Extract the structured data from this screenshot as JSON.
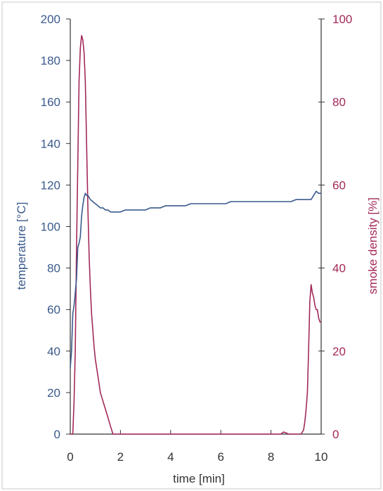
{
  "chart_data": {
    "type": "line",
    "title": "",
    "xlabel": "time [min]",
    "ylabel_left": "temperature [°C]",
    "ylabel_right": "smoke density [%]",
    "xlim": [
      0,
      10
    ],
    "ylim_left": [
      0,
      200
    ],
    "ylim_right": [
      0,
      100
    ],
    "x_ticks": [
      "0",
      "2",
      "4",
      "6",
      "8",
      "10"
    ],
    "y_left_ticks": [
      "0",
      "20",
      "40",
      "60",
      "80",
      "100",
      "120",
      "140",
      "160",
      "180",
      "200"
    ],
    "y_right_ticks": [
      "0",
      "20",
      "40",
      "60",
      "80",
      "100"
    ],
    "grid": false,
    "legend": "none",
    "colors": {
      "temperature": "#3a5a8c",
      "smoke": "#a3295a",
      "axes": "#333333",
      "frame": "#c8c8c8"
    },
    "series": [
      {
        "axis": "left",
        "x": [
          0.0,
          0.05,
          0.1,
          0.15,
          0.2,
          0.25,
          0.3,
          0.35,
          0.4,
          0.45,
          0.5,
          0.55,
          0.6,
          0.65,
          0.7,
          0.75,
          0.8,
          0.9,
          1.0,
          1.1,
          1.2,
          1.3,
          1.4,
          1.5,
          1.6,
          1.7,
          1.8,
          2.0,
          2.2,
          2.4,
          2.6,
          2.8,
          3.0,
          3.2,
          3.4,
          3.6,
          3.8,
          4.0,
          4.2,
          4.4,
          4.6,
          4.8,
          5.0,
          5.2,
          5.4,
          5.6,
          5.8,
          6.0,
          6.2,
          6.4,
          6.6,
          6.8,
          7.0,
          7.2,
          7.4,
          7.6,
          7.8,
          8.0,
          8.2,
          8.4,
          8.6,
          8.8,
          9.0,
          9.2,
          9.4,
          9.5,
          9.6,
          9.7,
          9.8,
          9.9,
          10.0
        ],
        "values": [
          32,
          40,
          58,
          62,
          68,
          75,
          90,
          92,
          95,
          105,
          110,
          114,
          116,
          115,
          115,
          114,
          113,
          112,
          111,
          110,
          109,
          109,
          108,
          108,
          107,
          107,
          107,
          107,
          108,
          108,
          108,
          108,
          108,
          109,
          109,
          109,
          110,
          110,
          110,
          110,
          110,
          111,
          111,
          111,
          111,
          111,
          111,
          111,
          111,
          112,
          112,
          112,
          112,
          112,
          112,
          112,
          112,
          112,
          112,
          112,
          112,
          112,
          113,
          113,
          113,
          113,
          113,
          115,
          117,
          116,
          116
        ]
      },
      {
        "axis": "right",
        "x": [
          0.0,
          0.05,
          0.1,
          0.15,
          0.2,
          0.25,
          0.3,
          0.35,
          0.4,
          0.45,
          0.5,
          0.55,
          0.6,
          0.65,
          0.7,
          0.75,
          0.8,
          0.85,
          0.9,
          0.95,
          1.0,
          1.05,
          1.1,
          1.15,
          1.2,
          1.25,
          1.3,
          1.35,
          1.4,
          1.45,
          1.5,
          1.55,
          1.6,
          1.65,
          1.7,
          1.8,
          2.0,
          2.5,
          3.0,
          4.0,
          5.0,
          6.0,
          7.0,
          8.0,
          8.4,
          8.5,
          8.6,
          8.7,
          8.8,
          9.0,
          9.2,
          9.3,
          9.35,
          9.4,
          9.45,
          9.5,
          9.55,
          9.6,
          9.65,
          9.7,
          9.75,
          9.8,
          9.85,
          9.9,
          9.95,
          10.0
        ],
        "values": [
          0,
          0,
          0,
          8,
          20,
          45,
          65,
          85,
          93,
          96,
          95,
          92,
          85,
          70,
          55,
          43,
          35,
          29,
          25,
          21,
          18,
          16,
          14,
          12,
          10,
          9,
          8,
          7,
          6,
          5,
          4,
          3,
          2,
          1,
          0,
          0,
          0,
          0,
          0,
          0,
          0,
          0,
          0,
          0,
          0,
          0.5,
          0.3,
          0,
          0,
          0,
          0,
          1,
          3,
          6,
          10,
          20,
          32,
          36,
          34,
          33,
          31,
          30,
          30,
          28,
          27,
          27
        ]
      }
    ]
  }
}
